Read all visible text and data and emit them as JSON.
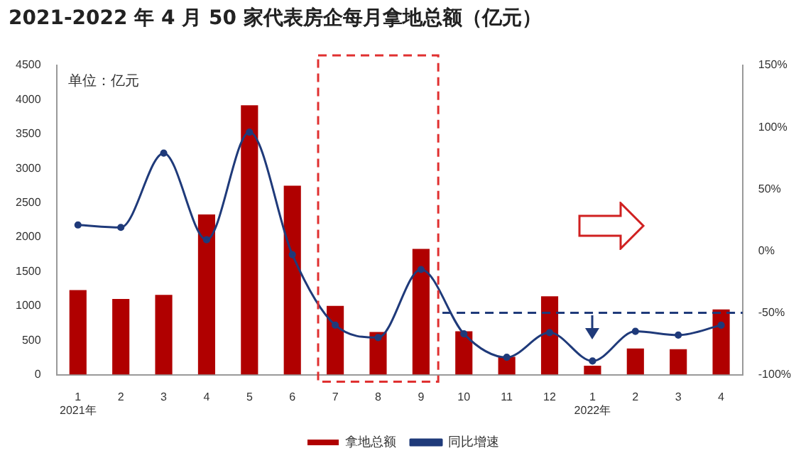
{
  "chart_data": {
    "type": "bar",
    "title": "2021-2022 年 4 月 50 家代表房企每月拿地总额（亿元）",
    "categories": [
      "1\n2021年",
      "2",
      "3",
      "4",
      "5",
      "6",
      "7",
      "8",
      "9",
      "10",
      "11",
      "12",
      "1\n2022年",
      "2",
      "3",
      "4"
    ],
    "series": [
      {
        "name": "拿地总额",
        "color": "#b00000",
        "values": [
          1230,
          1100,
          1160,
          2330,
          3920,
          2750,
          1000,
          620,
          1830,
          630,
          260,
          1140,
          130,
          380,
          370,
          950
        ]
      },
      {
        "name": "同比增速",
        "type": "line",
        "axis": "y2",
        "color": "#1f3a7a",
        "values": [
          21,
          19,
          79,
          9,
          96,
          -3,
          -60,
          -70,
          -15,
          -67,
          -86,
          -66,
          -89,
          -65,
          -68,
          -60
        ]
      }
    ],
    "ylim": [
      0,
      4500
    ],
    "yticks": [
      0,
      500,
      1000,
      1500,
      2000,
      2500,
      3000,
      3500,
      4000,
      4500
    ],
    "y2lim": [
      -100,
      150
    ],
    "y2ticks": [
      {
        "value": -100,
        "label": "-100%"
      },
      {
        "value": -50,
        "label": "-50%"
      },
      {
        "value": 0,
        "label": "0%"
      },
      {
        "value": 50,
        "label": "50%"
      },
      {
        "value": 100,
        "label": "100%"
      },
      {
        "value": 150,
        "label": "150%"
      }
    ],
    "ref_lines": [
      {
        "axis": "y2",
        "value": -50,
        "color": "#1f3a7a",
        "line_style": "dashed"
      }
    ],
    "annotations": [
      "单位：亿元"
    ],
    "marker": "circle",
    "legend": "bottom",
    "grid": false
  }
}
